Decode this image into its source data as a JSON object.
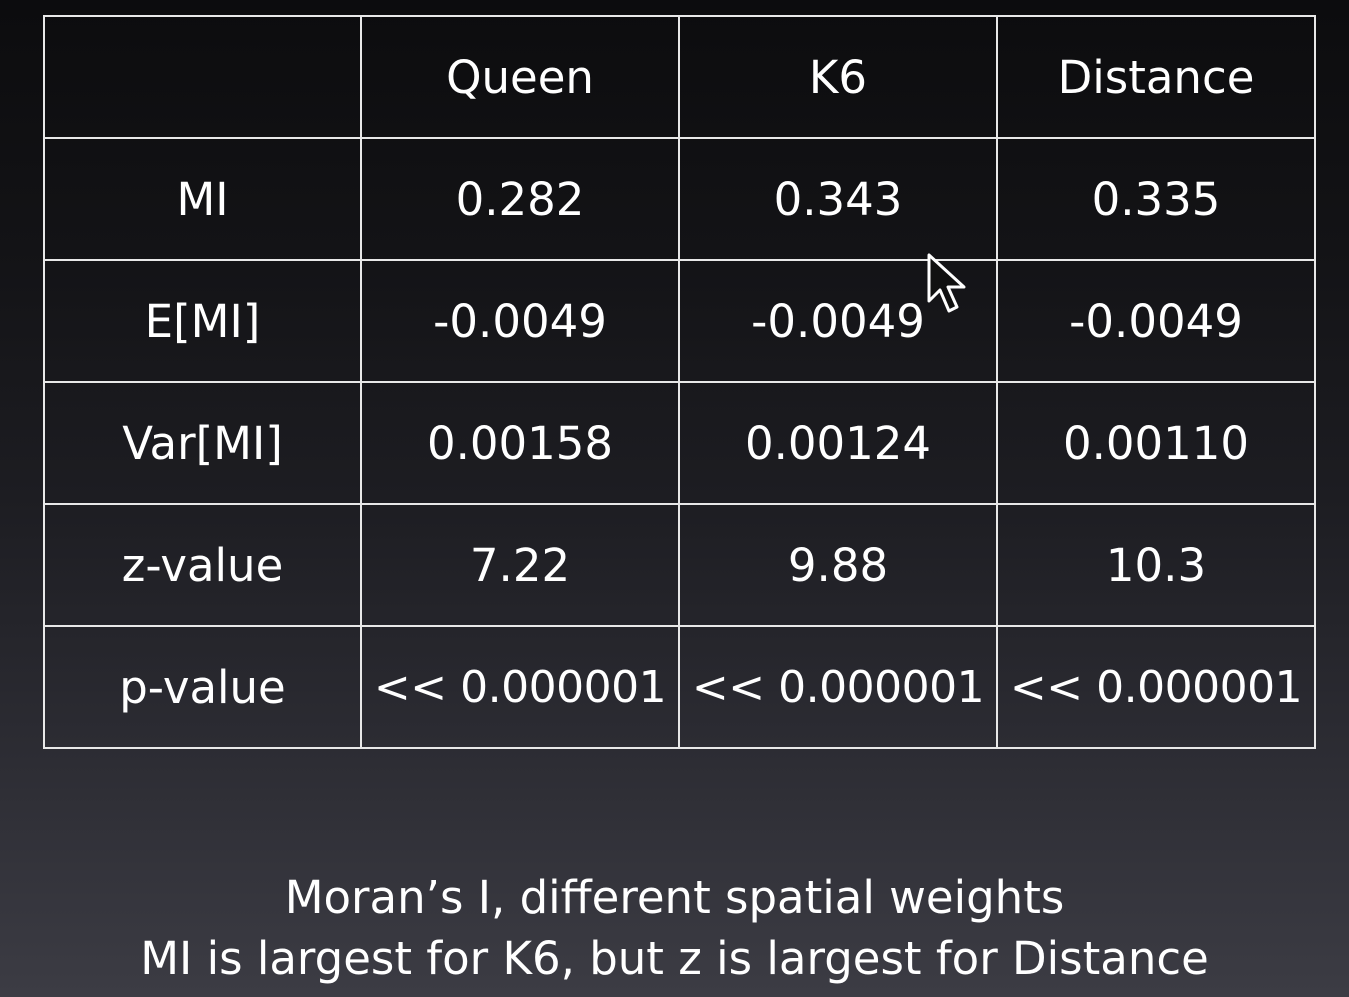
{
  "table": {
    "headers": [
      "",
      "Queen",
      "K6",
      "Distance"
    ],
    "rows": [
      {
        "label": "MI",
        "values": [
          "0.282",
          "0.343",
          "0.335"
        ]
      },
      {
        "label": "E[MI]",
        "values": [
          "-0.0049",
          "-0.0049",
          "-0.0049"
        ]
      },
      {
        "label": "Var[MI]",
        "values": [
          "0.00158",
          "0.00124",
          "0.00110"
        ]
      },
      {
        "label": "z-value",
        "values": [
          "7.22",
          "9.88",
          "10.3"
        ]
      },
      {
        "label": "p-value",
        "values": [
          "<< 0.000001",
          "<< 0.000001",
          "<< 0.000001"
        ]
      }
    ]
  },
  "caption": {
    "line1": "Moran’s I, different spatial weights",
    "line2": "MI is largest for K6, but z is largest for Distance"
  },
  "colors": {
    "background_top": "#0c0c0e",
    "background_bottom": "#3c3c44",
    "grid_line": "#e8e8e8",
    "text": "#ffffff"
  },
  "icons": {
    "cursor": "mouse-pointer-icon"
  }
}
